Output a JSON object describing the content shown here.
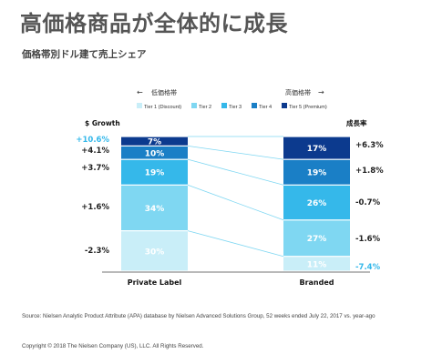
{
  "header": {
    "title": "高価格商品が全体的に成長",
    "subtitle": "価格帯別ドル建て売上シェア"
  },
  "chart_data": {
    "type": "bar",
    "stacked": true,
    "normalized_percent": true,
    "categories": [
      "Private Label",
      "Branded"
    ],
    "series": [
      {
        "name": "Tier 1 (Discount)",
        "values": [
          30,
          11
        ],
        "color": "#c9eef8"
      },
      {
        "name": "Tier 2",
        "values": [
          34,
          27
        ],
        "color": "#7fd7f2"
      },
      {
        "name": "Tier 3",
        "values": [
          19,
          26
        ],
        "color": "#35b8ea"
      },
      {
        "name": "Tier 4",
        "values": [
          10,
          19
        ],
        "color": "#1a7fc6"
      },
      {
        "name": "Tier 5 (Premium)",
        "values": [
          7,
          17
        ],
        "color": "#0c3a8e"
      }
    ],
    "left_axis_title": "$ Growth",
    "left_growth": [
      "-2.3%",
      "+1.6%",
      "+3.7%",
      "+4.1%",
      "+10.6%"
    ],
    "right_axis_title": "成長率",
    "right_growth": [
      "-7.4%",
      "-1.6%",
      "-0.7%",
      "+1.8%",
      "+6.3%"
    ],
    "arrow_left_label": "低価格帯",
    "arrow_right_label": "高価格帯",
    "legend_position": "top",
    "ylim": [
      0,
      100
    ]
  },
  "footer": {
    "source": "Source: Nielsen Analytic Product Attribute (APA) database by Nielsen Advanced Solutions Group, 52 weeks ended July 22, 2017 vs. year-ago",
    "copyright": "Copyright © 2018 The Nielsen Company (US), LLC. All Rights Reserved."
  }
}
